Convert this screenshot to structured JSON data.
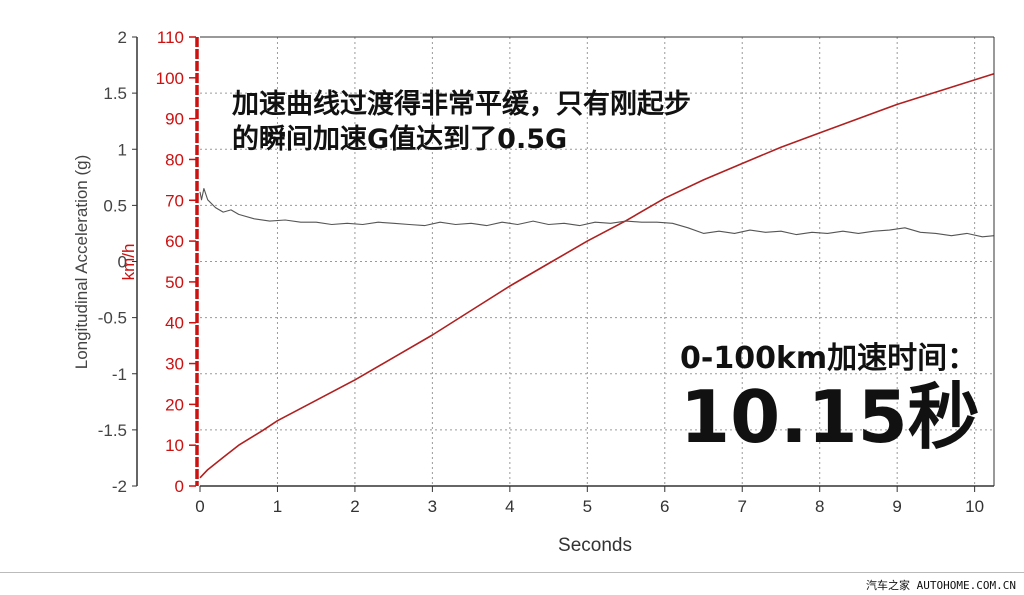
{
  "chart_data": {
    "type": "line",
    "xlabel": "Seconds",
    "ylabel_left": "Longitudinal Acceleration (g)",
    "ylabel_right": "km/h",
    "xlim": [
      0,
      10.25
    ],
    "ylim_left": [
      -2,
      2
    ],
    "ylim_right": [
      0,
      110
    ],
    "x_ticks": [
      "0",
      "1",
      "2",
      "3",
      "4",
      "5",
      "6",
      "7",
      "8",
      "9",
      "10"
    ],
    "y_ticks_left": [
      "2",
      "1.5",
      "1",
      "0.5",
      "0",
      "-0.5",
      "-1",
      "-1.5",
      "-2"
    ],
    "y_ticks_right": [
      "110",
      "100",
      "90",
      "80",
      "70",
      "60",
      "50",
      "40",
      "30",
      "20",
      "10",
      "0"
    ],
    "grid": true,
    "series": [
      {
        "axis": "right",
        "color": "#b02020",
        "x": [
          0,
          0.1,
          0.3,
          0.5,
          0.8,
          1.0,
          1.5,
          2.0,
          2.5,
          3.0,
          3.5,
          4.0,
          4.5,
          5.0,
          5.5,
          6.0,
          6.5,
          7.0,
          7.5,
          8.0,
          8.5,
          9.0,
          9.5,
          10.0,
          10.25
        ],
        "values": [
          2,
          4,
          7,
          10,
          13.5,
          16,
          21,
          26,
          31.5,
          37,
          43,
          49,
          54.5,
          60,
          65,
          70.5,
          75,
          79,
          83,
          86.5,
          90,
          93.5,
          96.5,
          99.5,
          101
        ]
      },
      {
        "axis": "left",
        "color": "#555555",
        "x": [
          0,
          0.02,
          0.05,
          0.1,
          0.2,
          0.3,
          0.4,
          0.5,
          0.7,
          0.9,
          1.1,
          1.3,
          1.5,
          1.7,
          1.9,
          2.1,
          2.3,
          2.5,
          2.7,
          2.9,
          3.1,
          3.3,
          3.5,
          3.7,
          3.9,
          4.1,
          4.3,
          4.5,
          4.7,
          4.9,
          5.1,
          5.3,
          5.5,
          5.7,
          5.9,
          6.1,
          6.3,
          6.5,
          6.7,
          6.9,
          7.1,
          7.3,
          7.5,
          7.7,
          7.9,
          8.1,
          8.3,
          8.5,
          8.7,
          8.9,
          9.1,
          9.3,
          9.5,
          9.7,
          9.9,
          10.1,
          10.25
        ],
        "values": [
          0.62,
          0.55,
          0.65,
          0.55,
          0.48,
          0.44,
          0.46,
          0.42,
          0.38,
          0.36,
          0.37,
          0.35,
          0.35,
          0.33,
          0.34,
          0.33,
          0.35,
          0.34,
          0.33,
          0.32,
          0.35,
          0.33,
          0.34,
          0.32,
          0.35,
          0.33,
          0.36,
          0.33,
          0.34,
          0.32,
          0.35,
          0.34,
          0.36,
          0.35,
          0.35,
          0.34,
          0.3,
          0.25,
          0.27,
          0.25,
          0.28,
          0.26,
          0.27,
          0.24,
          0.26,
          0.25,
          0.27,
          0.25,
          0.27,
          0.28,
          0.3,
          0.26,
          0.25,
          0.23,
          0.25,
          0.22,
          0.23
        ]
      }
    ],
    "annotations": [
      "加速曲线过渡得非常平缓，只有刚起步",
      "的瞬间加速G值达到了0.5G",
      "0-100km加速时间：",
      "10.15秒"
    ]
  },
  "footer": "汽车之家 AUTOHOME.COM.CN",
  "colors": {
    "speed": "#b02020",
    "accel": "#555555",
    "right_axis": "#cc1111",
    "grid": "#9a9a9a"
  }
}
